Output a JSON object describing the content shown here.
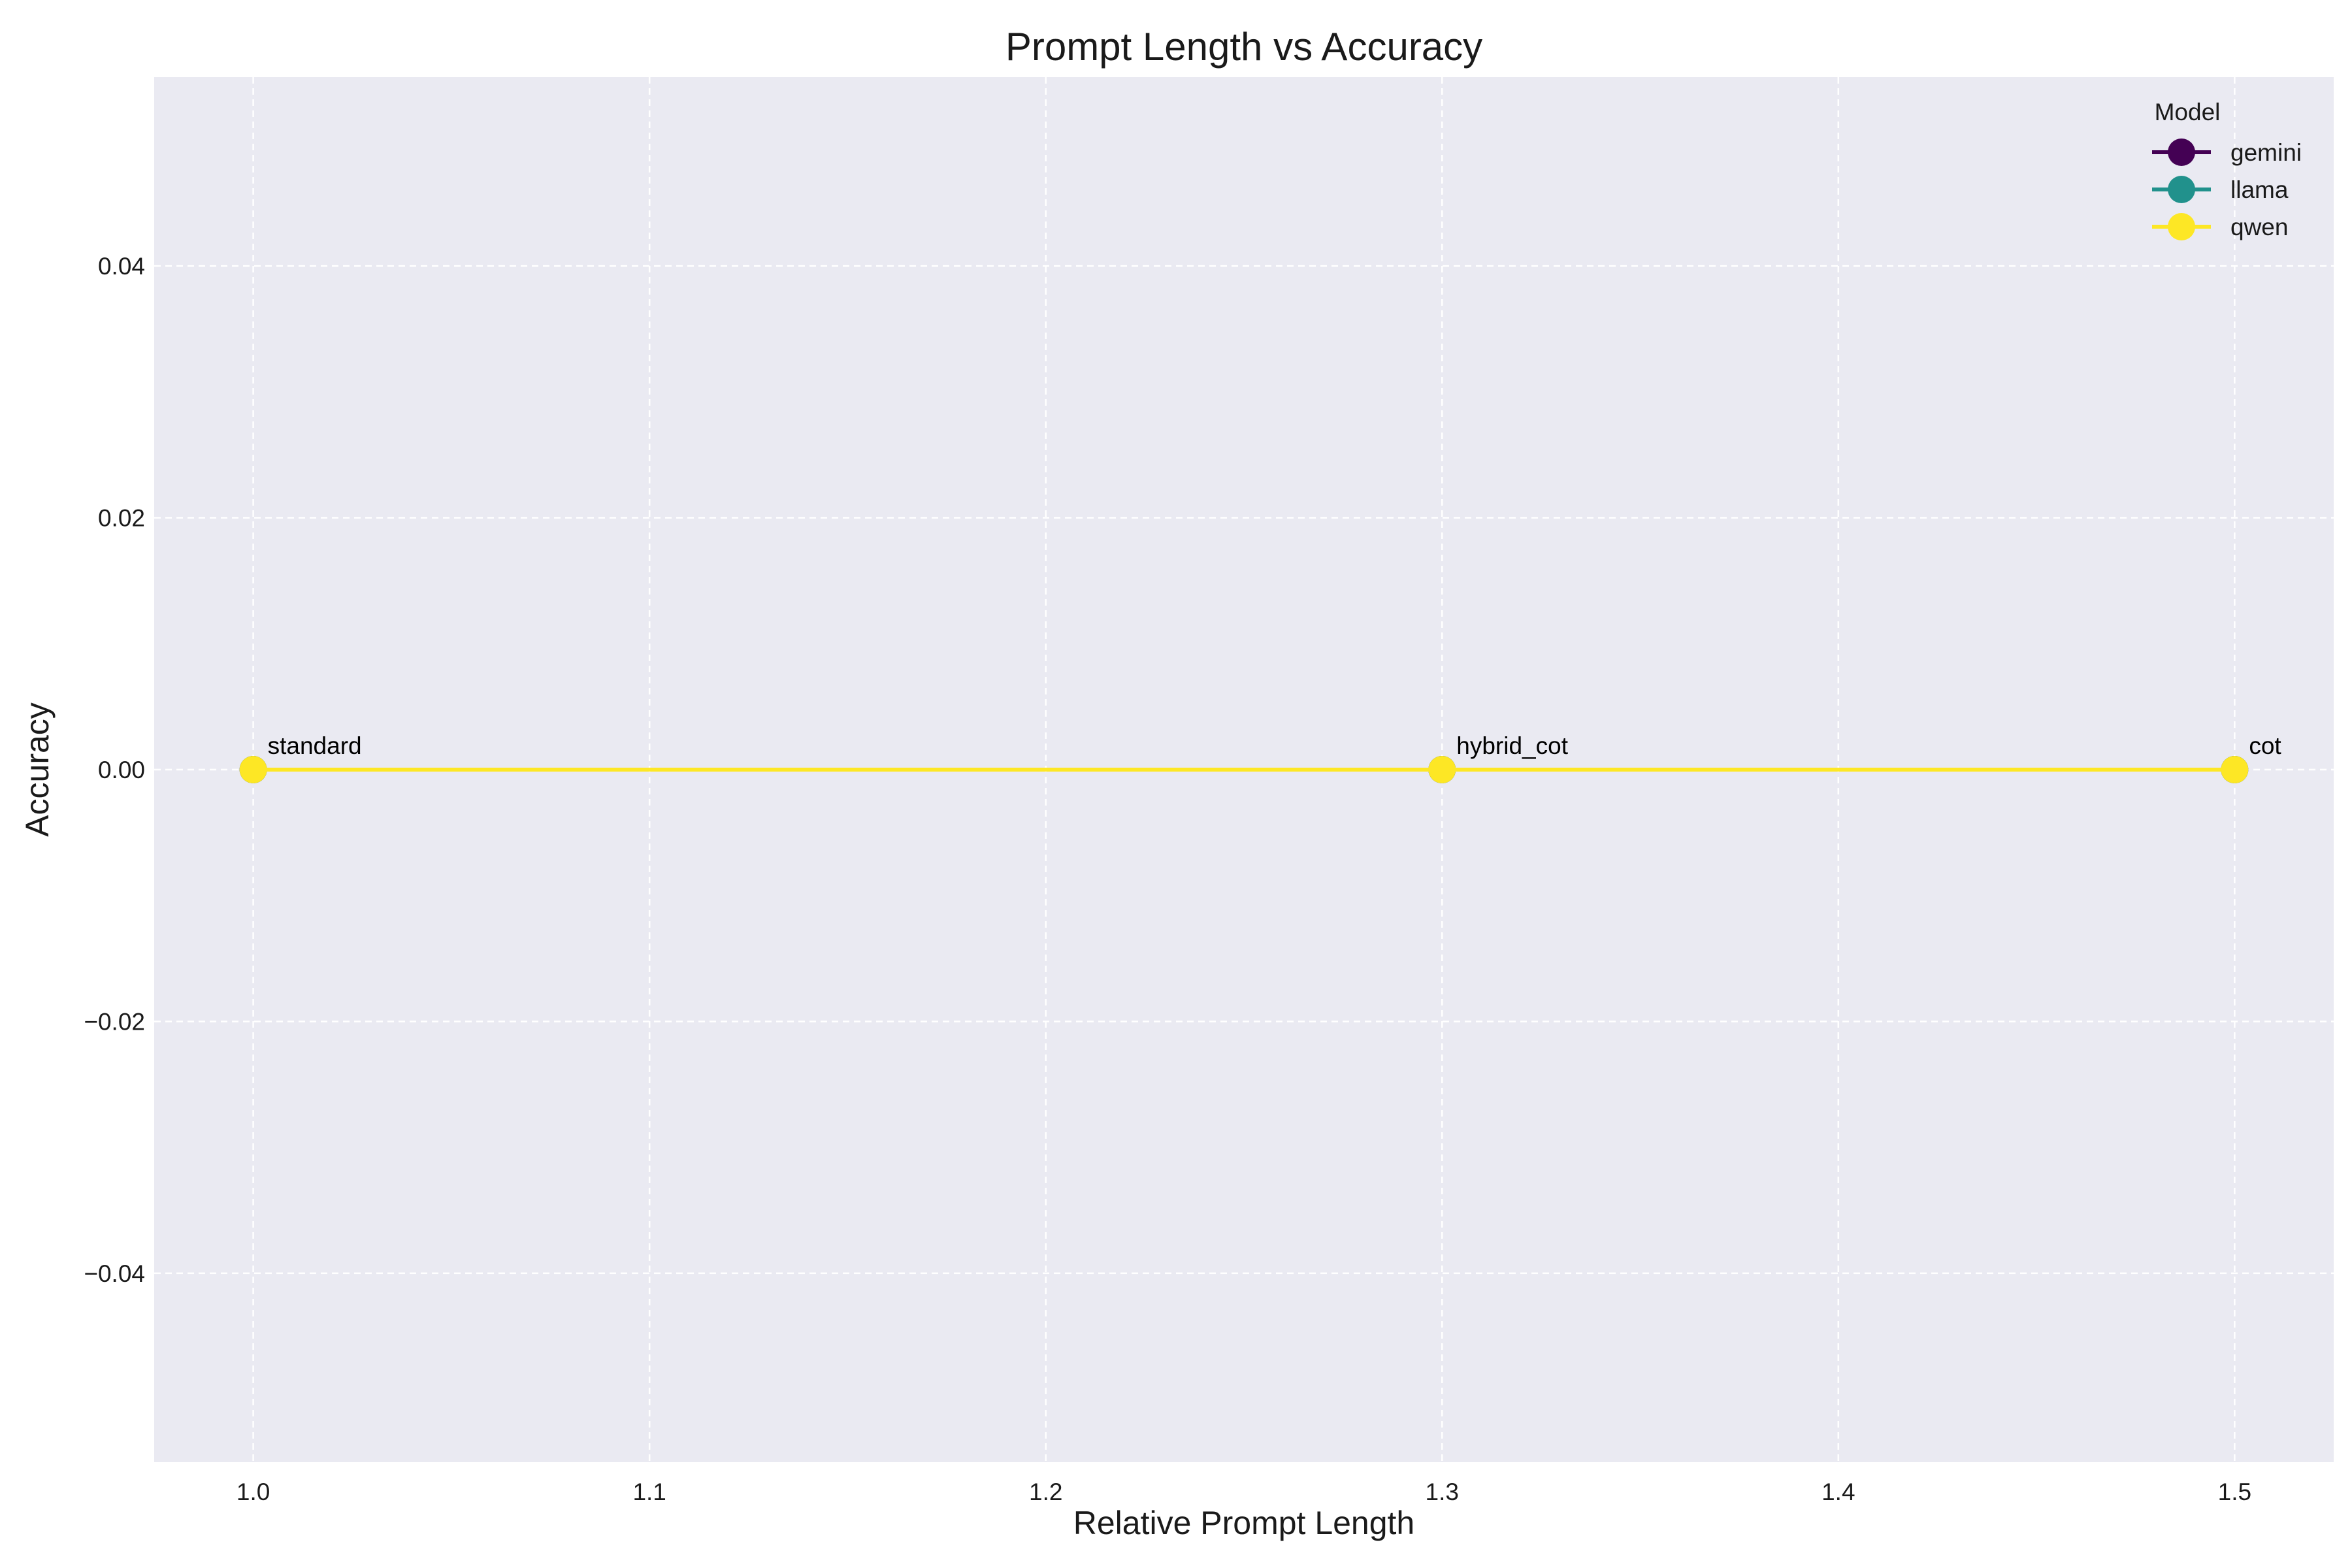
{
  "chart_data": {
    "type": "line",
    "title": "Prompt Length vs Accuracy",
    "xlabel": "Relative Prompt Length",
    "ylabel": "Accuracy",
    "xlim": [
      0.975,
      1.525
    ],
    "ylim": [
      -0.055,
      0.055
    ],
    "xticks": [
      1.0,
      1.1,
      1.2,
      1.3,
      1.4,
      1.5
    ],
    "xtick_labels": [
      "1.0",
      "1.1",
      "1.2",
      "1.3",
      "1.4",
      "1.5"
    ],
    "yticks": [
      -0.04,
      -0.02,
      0.0,
      0.02,
      0.04
    ],
    "ytick_labels": [
      "−0.04",
      "−0.02",
      "0.00",
      "0.02",
      "0.04"
    ],
    "grid": true,
    "legend": {
      "title": "Model",
      "position": "top-right"
    },
    "series": [
      {
        "name": "gemini",
        "color": "#440154",
        "x": [
          1.0,
          1.3,
          1.5
        ],
        "y": [
          0.0,
          0.0,
          0.0
        ]
      },
      {
        "name": "llama",
        "color": "#21918c",
        "x": [
          1.0,
          1.3,
          1.5
        ],
        "y": [
          0.0,
          0.0,
          0.0
        ]
      },
      {
        "name": "qwen",
        "color": "#fde725",
        "x": [
          1.0,
          1.3,
          1.5
        ],
        "y": [
          0.0,
          0.0,
          0.0
        ]
      }
    ],
    "annotations": [
      {
        "text": "standard",
        "x": 1.0,
        "y": 0.0
      },
      {
        "text": "hybrid_cot",
        "x": 1.3,
        "y": 0.0
      },
      {
        "text": "cot",
        "x": 1.5,
        "y": 0.0
      }
    ]
  }
}
